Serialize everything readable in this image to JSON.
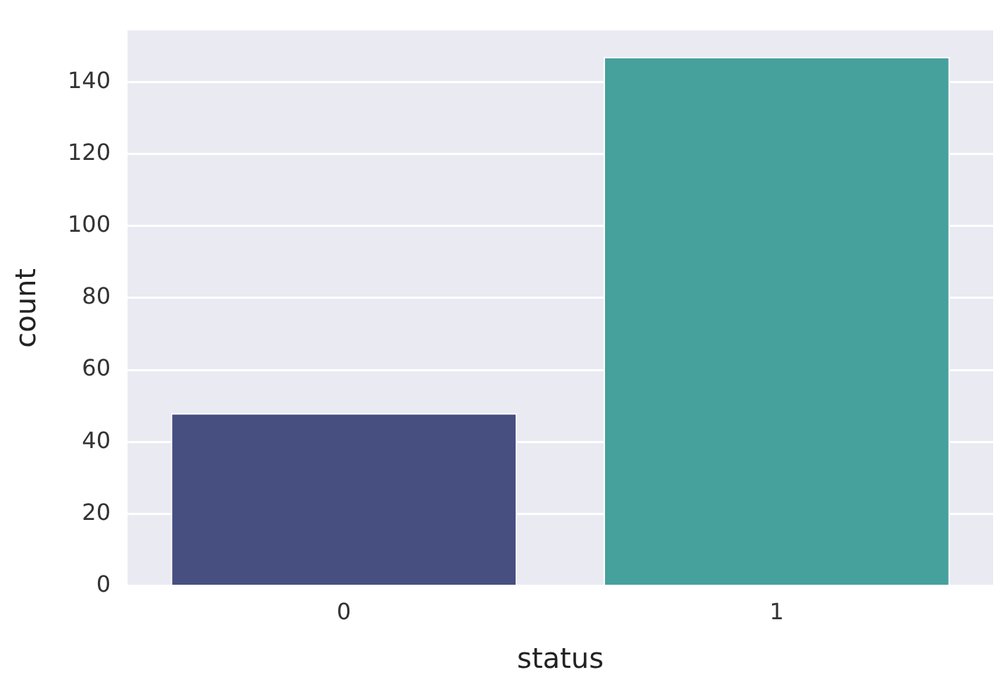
{
  "chart_data": {
    "type": "bar",
    "xlabel": "status",
    "ylabel": "count",
    "categories": [
      "0",
      "1"
    ],
    "values": [
      48,
      147
    ],
    "colors": [
      "#464f80",
      "#46a09c"
    ],
    "ylim": [
      0,
      154.35
    ],
    "yticks": [
      0,
      20,
      40,
      60,
      80,
      100,
      120,
      140
    ],
    "grid": "y"
  }
}
